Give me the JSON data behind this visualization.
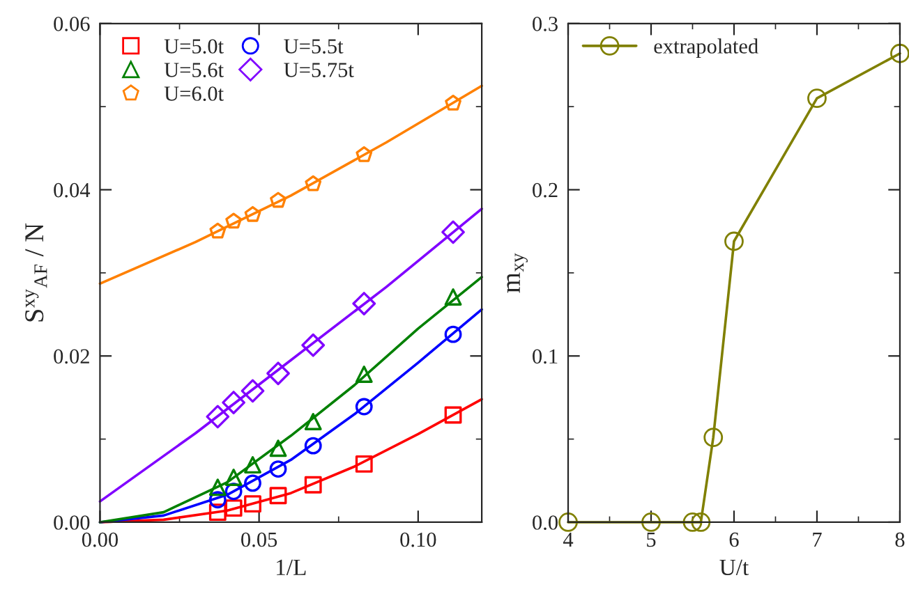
{
  "chart_data": [
    {
      "type": "scatter",
      "xlabel": "1/L",
      "ylabel": "S$^{xy}$$_{AF}$ / N",
      "xlim": [
        0,
        0.12
      ],
      "ylim": [
        0,
        0.06
      ],
      "xticks": [
        {
          "value": 0,
          "label": "0.00"
        },
        {
          "value": 0.05,
          "label": "0.05"
        },
        {
          "value": 0.1,
          "label": "0.10"
        }
      ],
      "yticks": [
        {
          "value": 0,
          "label": "0.00"
        },
        {
          "value": 0.02,
          "label": "0.02"
        },
        {
          "value": 0.04,
          "label": "0.04"
        },
        {
          "value": 0.06,
          "label": "0.06"
        }
      ],
      "legend": "top left",
      "grid": false,
      "x": [
        0.037,
        0.042,
        0.048,
        0.056,
        0.067,
        0.083,
        0.111
      ],
      "series": [
        {
          "name": "U=5.0t",
          "color": "#ff0000",
          "marker": "square",
          "values": [
            0.0012,
            0.0017,
            0.0022,
            0.0032,
            0.0045,
            0.007,
            0.0129
          ]
        },
        {
          "name": "U=5.5t",
          "color": "#0000ff",
          "marker": "circle",
          "values": [
            0.0027,
            0.0037,
            0.0047,
            0.0064,
            0.0092,
            0.0139,
            0.0226
          ]
        },
        {
          "name": "U=5.6t",
          "color": "#008000",
          "marker": "triangle",
          "values": [
            0.0042,
            0.0054,
            0.0069,
            0.0089,
            0.0121,
            0.0178,
            0.0271
          ]
        },
        {
          "name": "U=5.75t",
          "color": "#8000ff",
          "marker": "diamond",
          "values": [
            0.0127,
            0.0144,
            0.0158,
            0.0179,
            0.0213,
            0.0263,
            0.0349
          ]
        },
        {
          "name": "U=6.0t",
          "color": "#ff8000",
          "values": [
            0.035,
            0.0362,
            0.037,
            0.0387,
            0.0407,
            0.0442,
            0.0504
          ]
        },
        {
          "type": "line",
          "marker": "none",
          "color": "#ff0000",
          "x": [
            0,
            0.02,
            0.04,
            0.06,
            0.08,
            0.1,
            0.12
          ],
          "values": [
            0,
            0.0003,
            0.0014,
            0.0035,
            0.0067,
            0.0106,
            0.0148
          ]
        },
        {
          "type": "line",
          "marker": "none",
          "color": "#0000ff",
          "x": [
            0,
            0.02,
            0.04,
            0.06,
            0.08,
            0.1,
            0.12
          ],
          "values": [
            0,
            0.0008,
            0.0033,
            0.0075,
            0.013,
            0.0192,
            0.0256
          ]
        },
        {
          "type": "line",
          "marker": "none",
          "color": "#008000",
          "x": [
            0,
            0.02,
            0.04,
            0.06,
            0.08,
            0.1,
            0.12
          ],
          "values": [
            0,
            0.0012,
            0.0048,
            0.0104,
            0.0165,
            0.0233,
            0.0295
          ]
        },
        {
          "type": "line",
          "marker": "none",
          "color": "#8000ff",
          "x": [
            0,
            0.03,
            0.06,
            0.09,
            0.12
          ],
          "values": [
            0.0025,
            0.0107,
            0.0195,
            0.0283,
            0.0377
          ]
        },
        {
          "type": "line",
          "marker": "none",
          "color": "#ff8000",
          "x": [
            0,
            0.03,
            0.06,
            0.09,
            0.12
          ],
          "values": [
            0.0287,
            0.0337,
            0.0393,
            0.0457,
            0.0525
          ]
        }
      ]
    },
    {
      "type": "line",
      "xlabel": "U/t",
      "ylabel": "m$_{xy}$",
      "xlim": [
        4,
        8
      ],
      "ylim": [
        0,
        0.3
      ],
      "xticks": [
        4,
        5,
        6,
        7,
        8
      ],
      "yticks": [
        {
          "value": 0,
          "label": "0.0"
        },
        {
          "value": 0.1,
          "label": "0.1"
        },
        {
          "value": 0.2,
          "label": "0.2"
        },
        {
          "value": 0.3,
          "label": "0.3"
        }
      ],
      "legend": "top left",
      "grid": false,
      "marker": "circle",
      "line_style": "solid",
      "x": [
        4,
        5,
        5.5,
        5.6,
        5.75,
        6,
        7,
        8
      ],
      "series": [
        {
          "name": "extrapolated",
          "color": "#808000",
          "values": [
            0,
            0,
            0,
            0,
            0.051,
            0.169,
            0.255,
            0.282
          ]
        }
      ]
    }
  ]
}
